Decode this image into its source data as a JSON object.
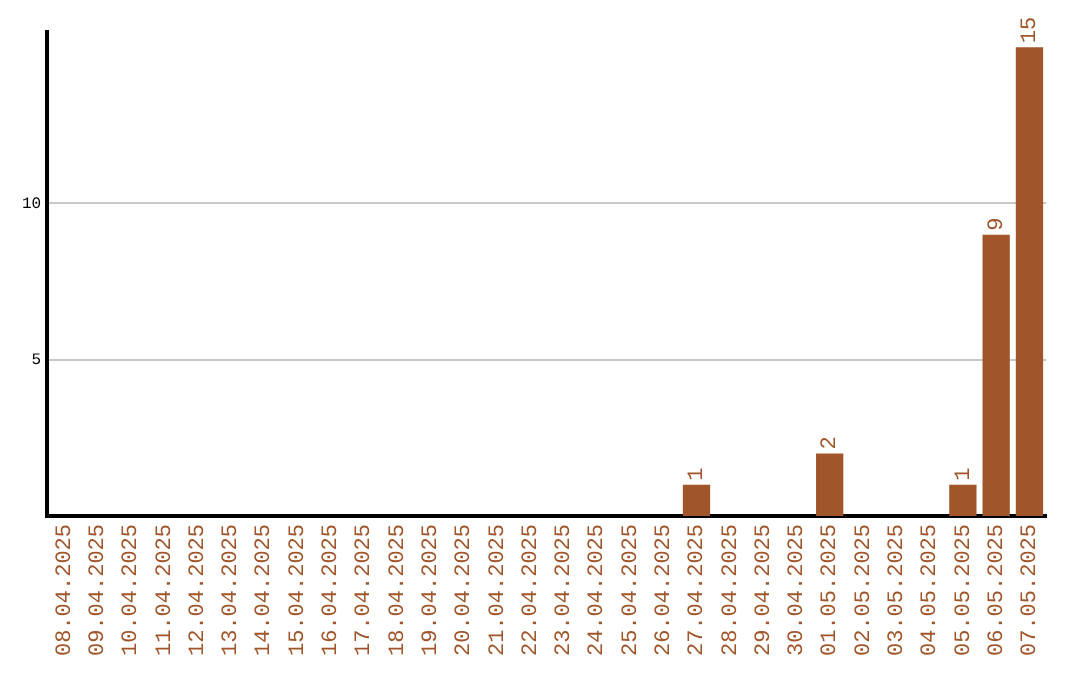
{
  "chart_data": {
    "type": "bar",
    "categories": [
      "08.04.2025",
      "09.04.2025",
      "10.04.2025",
      "11.04.2025",
      "12.04.2025",
      "13.04.2025",
      "14.04.2025",
      "15.04.2025",
      "16.04.2025",
      "17.04.2025",
      "18.04.2025",
      "19.04.2025",
      "20.04.2025",
      "21.04.2025",
      "22.04.2025",
      "23.04.2025",
      "24.04.2025",
      "25.04.2025",
      "26.04.2025",
      "27.04.2025",
      "28.04.2025",
      "29.04.2025",
      "30.04.2025",
      "01.05.2025",
      "02.05.2025",
      "03.05.2025",
      "04.05.2025",
      "05.05.2025",
      "06.05.2025",
      "07.05.2025"
    ],
    "values": [
      0,
      0,
      0,
      0,
      0,
      0,
      0,
      0,
      0,
      0,
      0,
      0,
      0,
      0,
      0,
      0,
      0,
      0,
      0,
      1,
      0,
      0,
      0,
      2,
      0,
      0,
      0,
      1,
      9,
      15
    ],
    "value_labels": [
      null,
      null,
      null,
      null,
      null,
      null,
      null,
      null,
      null,
      null,
      null,
      null,
      null,
      null,
      null,
      null,
      null,
      null,
      null,
      "1",
      null,
      null,
      null,
      "2",
      null,
      null,
      null,
      "1",
      "9",
      "15"
    ],
    "color": "#a0562a",
    "ylim": [
      0,
      15.5
    ],
    "yticks": [
      5,
      10
    ],
    "grid": "y",
    "legend": false
  }
}
